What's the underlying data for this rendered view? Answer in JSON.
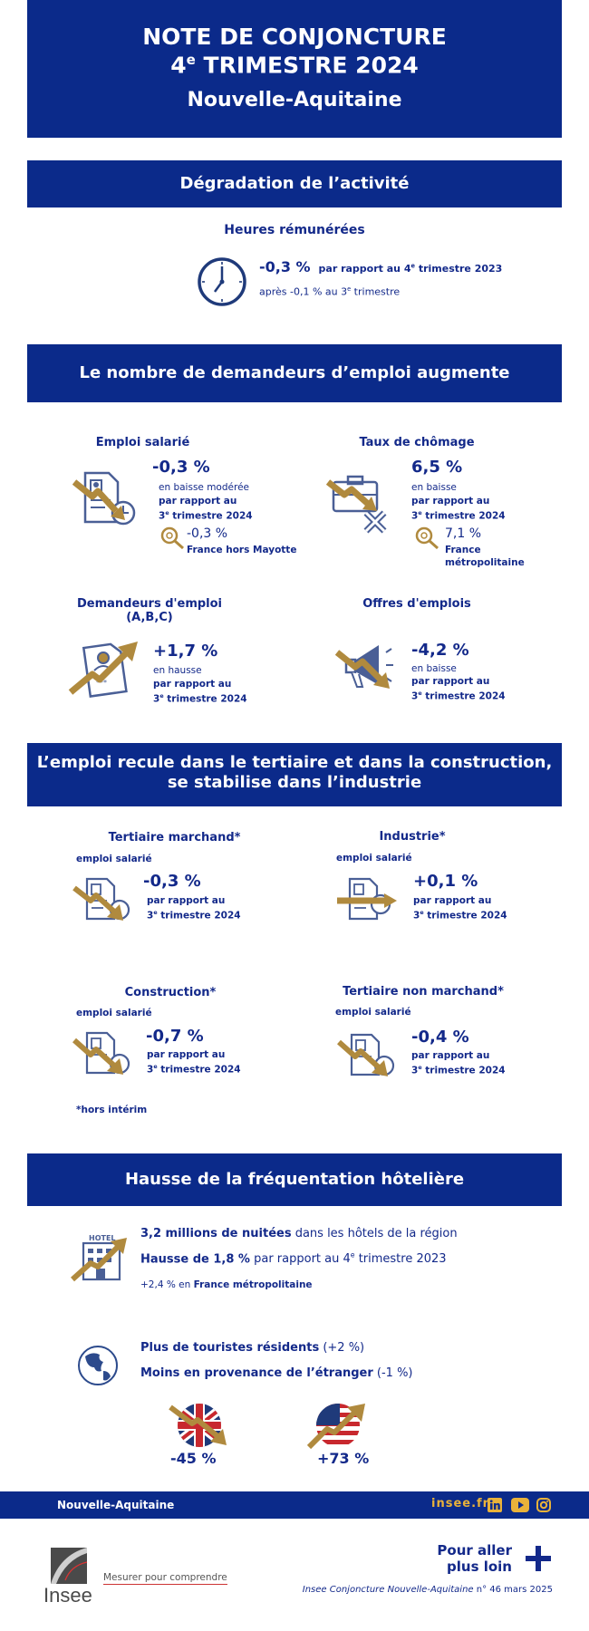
{
  "header": {
    "line1": "NOTE DE CONJONCTURE",
    "line2_num": "4",
    "line2_sup": "e",
    "line2_rest": " TRIMESTRE 2024",
    "region": "Nouvelle-Aquitaine"
  },
  "s1": {
    "title": "Dégradation de l’activité",
    "label": "Heures rémunérées",
    "value": "-0,3 %",
    "value_ctx_a": "par rapport au 4",
    "value_ctx_sup": "e",
    "value_ctx_b": " trimestre 2023",
    "after_a": "après -0,1 % au 3",
    "after_sup": "e",
    "after_b": " trimestre"
  },
  "s2": {
    "title": "Le nombre de demandeurs d’emploi augmente",
    "emploi": {
      "label": "Emploi salarié",
      "value": "-0,3 %",
      "desc": "en baisse modérée",
      "ref1": "par rapport au",
      "ref2_num": "3",
      "ref2_sup": "e",
      "ref2_rest": " trimestre 2024",
      "cmp_value": "-0,3 %",
      "cmp_label": "France hors Mayotte"
    },
    "chomage": {
      "label": "Taux de chômage",
      "value": "6,5 %",
      "desc": "en baisse",
      "ref1": "par rapport au",
      "ref2_num": "3",
      "ref2_sup": "e",
      "ref2_rest": " trimestre 2024",
      "cmp_value": "7,1 %",
      "cmp_label1": "France",
      "cmp_label2": "métropolitaine"
    },
    "demandeurs": {
      "label1": "Demandeurs d'emploi",
      "label2": "(A,B,C)",
      "value": "+1,7 %",
      "desc": "en hausse",
      "ref1": "par rapport au",
      "ref2_num": "3",
      "ref2_sup": "e",
      "ref2_rest": " trimestre 2024"
    },
    "offres": {
      "label": "Offres d'emplois",
      "value": "-4,2 %",
      "desc": "en baisse",
      "ref1": "par rapport au",
      "ref2_num": "3",
      "ref2_sup": "e",
      "ref2_rest": "  trimestre 2024"
    }
  },
  "s3": {
    "title1": "L’emploi recule dans le tertiaire et dans la construction,",
    "title2": "se stabilise dans l’industrie",
    "sublabel": "emploi salarié",
    "ref1": "par rapport au",
    "ref2_num": "3",
    "ref2_sup": "e",
    "ref2_rest": " trimestre 2024",
    "tertiaire": {
      "label": "Tertiaire marchand*",
      "value": "-0,3 %"
    },
    "industrie": {
      "label": "Industrie*",
      "value": "+0,1 %"
    },
    "construction": {
      "label": "Construction*",
      "value": "-0,7 %"
    },
    "nonmarchand": {
      "label": "Tertiaire non marchand*",
      "value": "-0,4 %"
    },
    "note": "*hors intérim"
  },
  "s4": {
    "title": "Hausse de la fréquentation hôtelière",
    "hotel_sign": "HOTEL",
    "nuitees_b": "3,2 millions de nuitées",
    "nuitees_r": " dans les hôtels de la région",
    "hausse_b": "Hausse de 1,8 %",
    "hausse_r_a": " par rapport au 4",
    "hausse_r_sup": "e",
    "hausse_r_b": " trimestre 2023",
    "france_a": "+2,4 % en ",
    "france_b": "France métropolitaine",
    "residents_b": "Plus de touristes résidents",
    "residents_r": " (+2 %)",
    "etranger_b": "Moins en provenance de l’étranger",
    "etranger_r": " (-1 %)",
    "uk_value": "-45 %",
    "us_value": "+73 %"
  },
  "footer": {
    "region": "Nouvelle-Aquitaine",
    "site": "insee.fr",
    "more1": "Pour aller",
    "more2": "plus loin",
    "logo_name": "Insee",
    "tagline": "Mesurer pour comprendre",
    "ref_italic": "Insee Conjoncture Nouvelle-Aquitaine",
    "ref_rest": " n° 46 mars 2025"
  },
  "colors": {
    "navy": "#0b2a8a",
    "gold": "#b08a3e",
    "icon_blue": "#4a5f96"
  }
}
